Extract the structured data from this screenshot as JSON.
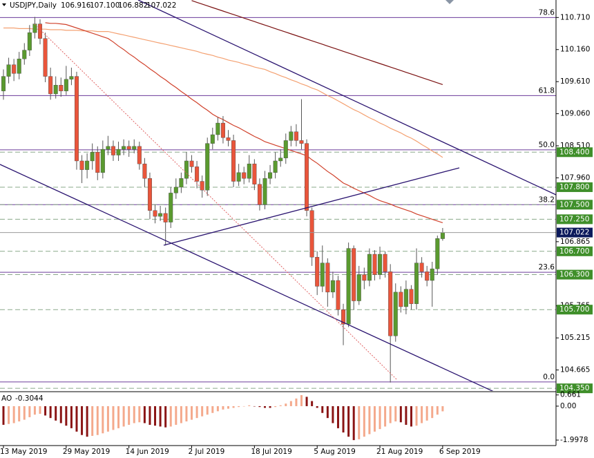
{
  "chart_data": {
    "type": "candlestick",
    "header": {
      "symbol": "USDJPY,Daily",
      "values": [
        "106.916",
        "107.100",
        "106.882",
        "107.022"
      ]
    },
    "categories": [
      "13 May 2019",
      null,
      null,
      null,
      null,
      null,
      null,
      null,
      null,
      null,
      null,
      null,
      "29 May 2019",
      null,
      null,
      null,
      null,
      null,
      null,
      null,
      null,
      null,
      null,
      null,
      "14 Jun 2019",
      null,
      null,
      null,
      null,
      null,
      null,
      null,
      null,
      null,
      null,
      null,
      "2 Jul 2019",
      null,
      null,
      null,
      null,
      null,
      null,
      null,
      null,
      null,
      null,
      null,
      "18 Jul 2019",
      null,
      null,
      null,
      null,
      null,
      null,
      null,
      null,
      null,
      null,
      null,
      "5 Aug 2019",
      null,
      null,
      null,
      null,
      null,
      null,
      null,
      null,
      null,
      null,
      null,
      "21 Aug 2019",
      null,
      null,
      null,
      null,
      null,
      null,
      null,
      null,
      null,
      null,
      null,
      "6 Sep 2019"
    ],
    "open": [
      109.45,
      109.7,
      109.9,
      109.75,
      110.0,
      110.15,
      110.45,
      110.6,
      110.35,
      109.7,
      109.4,
      109.55,
      109.45,
      109.65,
      109.7,
      108.25,
      108.1,
      108.25,
      108.4,
      108.05,
      108.45,
      108.5,
      108.35,
      108.45,
      108.5,
      108.45,
      108.5,
      108.2,
      107.95,
      107.4,
      107.3,
      107.35,
      107.2,
      107.7,
      107.8,
      107.95,
      108.25,
      108.15,
      107.9,
      107.75,
      108.55,
      108.7,
      108.9,
      108.65,
      108.6,
      107.9,
      108.05,
      107.95,
      108.2,
      107.85,
      107.5,
      107.95,
      108.05,
      108.25,
      108.3,
      108.6,
      108.75,
      108.6,
      108.55,
      107.4,
      106.6,
      106.1,
      106.5,
      106.0,
      106.2,
      105.7,
      105.45,
      106.75,
      105.85,
      106.3,
      106.2,
      106.65,
      106.3,
      106.65,
      106.35,
      105.25,
      106.0,
      105.75,
      106.05,
      105.8,
      106.5,
      106.35,
      106.2,
      106.4,
      106.916
    ],
    "high": [
      109.82,
      110.02,
      110.0,
      110.12,
      110.27,
      110.58,
      110.72,
      110.68,
      110.45,
      109.85,
      109.7,
      109.68,
      109.88,
      109.85,
      109.78,
      108.35,
      108.38,
      108.55,
      108.5,
      108.6,
      108.68,
      108.6,
      108.58,
      108.62,
      108.6,
      108.62,
      108.58,
      108.3,
      108.05,
      107.5,
      107.48,
      107.45,
      107.8,
      107.95,
      108.05,
      108.4,
      108.35,
      108.25,
      108.0,
      108.65,
      108.82,
      109.0,
      109.02,
      108.78,
      108.7,
      108.2,
      108.15,
      108.35,
      108.28,
      107.95,
      108.08,
      108.18,
      108.4,
      108.45,
      108.72,
      108.85,
      108.88,
      109.31,
      108.62,
      107.45,
      106.7,
      106.8,
      106.58,
      106.35,
      106.28,
      105.8,
      106.85,
      106.8,
      106.45,
      106.42,
      106.75,
      106.72,
      106.78,
      106.7,
      106.48,
      106.15,
      106.1,
      106.2,
      106.12,
      106.75,
      106.6,
      106.45,
      106.52,
      106.97,
      107.1
    ],
    "low": [
      109.3,
      109.58,
      109.62,
      109.65,
      109.9,
      110.05,
      110.35,
      110.25,
      109.6,
      109.3,
      109.32,
      109.35,
      109.38,
      109.55,
      108.1,
      107.87,
      107.95,
      108.1,
      107.92,
      107.95,
      108.35,
      108.25,
      108.25,
      108.35,
      108.32,
      108.38,
      108.1,
      107.8,
      107.25,
      107.18,
      107.22,
      106.8,
      107.1,
      107.6,
      107.7,
      107.85,
      108.05,
      107.78,
      107.62,
      107.65,
      108.45,
      108.6,
      108.55,
      108.5,
      107.8,
      107.82,
      107.85,
      107.88,
      107.75,
      107.4,
      107.42,
      107.85,
      107.95,
      108.15,
      108.2,
      108.5,
      108.5,
      108.45,
      107.3,
      106.45,
      105.95,
      106.0,
      105.75,
      105.9,
      105.6,
      105.09,
      105.4,
      105.7,
      105.78,
      106.05,
      106.1,
      106.2,
      106.22,
      106.25,
      104.45,
      105.15,
      105.65,
      105.62,
      105.7,
      105.7,
      106.25,
      106.1,
      105.75,
      106.3,
      106.882
    ],
    "close": [
      109.7,
      109.9,
      109.75,
      110.0,
      110.15,
      110.45,
      110.6,
      110.35,
      109.7,
      109.4,
      109.55,
      109.45,
      109.65,
      109.7,
      108.25,
      108.1,
      108.25,
      108.4,
      108.05,
      108.45,
      108.5,
      108.35,
      108.45,
      108.5,
      108.45,
      108.5,
      108.2,
      107.95,
      107.4,
      107.3,
      107.35,
      107.2,
      107.7,
      107.8,
      107.95,
      108.25,
      108.15,
      107.9,
      107.75,
      108.55,
      108.7,
      108.9,
      108.65,
      108.6,
      107.9,
      108.05,
      107.95,
      108.2,
      107.85,
      107.5,
      107.95,
      108.05,
      108.25,
      108.3,
      108.6,
      108.75,
      108.6,
      108.55,
      107.4,
      106.6,
      106.1,
      106.5,
      106.0,
      106.2,
      105.7,
      105.45,
      106.75,
      105.85,
      106.3,
      106.2,
      106.65,
      106.3,
      106.65,
      106.35,
      105.25,
      106.0,
      105.75,
      106.05,
      105.8,
      106.5,
      106.35,
      106.2,
      106.4,
      106.92,
      107.022
    ],
    "up_color": "#5a9a2f",
    "down_color": "#e9553b",
    "ylim": [
      104.34,
      111.01
    ],
    "yticks": [
      {
        "value": 110.71,
        "label": "110.710"
      },
      {
        "value": 110.16,
        "label": "110.160"
      },
      {
        "value": 109.61,
        "label": "109.610"
      },
      {
        "value": 109.06,
        "label": "109.060"
      },
      {
        "value": 108.51,
        "label": "108.510"
      },
      {
        "value": 107.96,
        "label": "107.960"
      },
      106.865,
      105.765,
      105.215,
      104.665
    ],
    "moving_averages": [
      {
        "color": "#7a1010",
        "values": [
          null,
          null,
          null,
          null,
          null,
          null,
          null,
          null,
          null,
          null,
          null,
          null,
          null,
          null,
          null,
          null,
          null,
          null,
          null,
          null,
          null,
          null,
          null,
          null,
          null,
          null,
          null,
          null,
          null,
          null,
          null,
          null,
          null,
          null,
          null,
          null,
          111.0,
          110.97,
          110.94,
          110.91,
          110.88,
          110.85,
          110.82,
          110.79,
          110.76,
          110.73,
          110.7,
          110.67,
          110.64,
          110.61,
          110.58,
          110.55,
          110.52,
          110.49,
          110.46,
          110.43,
          110.4,
          110.37,
          110.34,
          110.31,
          110.28,
          110.25,
          110.22,
          110.19,
          110.16,
          110.13,
          110.1,
          110.07,
          110.04,
          110.01,
          109.98,
          109.95,
          109.92,
          109.89,
          109.86,
          109.83,
          109.8,
          109.77,
          109.74,
          109.71,
          109.68,
          109.65,
          109.62,
          109.59,
          109.56
        ]
      },
      {
        "color": "#f4a070",
        "values": [
          110.53,
          110.53,
          110.53,
          110.52,
          110.52,
          110.52,
          110.51,
          110.51,
          110.51,
          110.5,
          110.5,
          110.5,
          110.49,
          110.49,
          110.49,
          110.48,
          110.48,
          110.48,
          110.47,
          110.47,
          110.47,
          110.45,
          110.43,
          110.41,
          110.39,
          110.37,
          110.35,
          110.33,
          110.31,
          110.29,
          110.27,
          110.25,
          110.23,
          110.21,
          110.19,
          110.17,
          110.15,
          110.13,
          110.1,
          110.08,
          110.06,
          110.03,
          110.01,
          109.98,
          109.96,
          109.94,
          109.91,
          109.89,
          109.86,
          109.84,
          109.82,
          109.78,
          109.75,
          109.71,
          109.68,
          109.64,
          109.61,
          109.57,
          109.54,
          109.5,
          109.47,
          109.42,
          109.37,
          109.33,
          109.28,
          109.23,
          109.18,
          109.13,
          109.09,
          109.04,
          108.99,
          108.95,
          108.9,
          108.86,
          108.81,
          108.77,
          108.73,
          108.68,
          108.64,
          108.59,
          108.53,
          108.48,
          108.42,
          108.37,
          108.31
        ]
      },
      {
        "color": "#d0402a",
        "values": [
          null,
          null,
          null,
          null,
          null,
          null,
          null,
          null,
          110.62,
          110.61,
          110.61,
          110.6,
          110.59,
          110.56,
          110.53,
          110.5,
          110.47,
          110.44,
          110.41,
          110.38,
          110.35,
          110.29,
          110.22,
          110.16,
          110.09,
          110.03,
          109.96,
          109.9,
          109.83,
          109.77,
          109.7,
          109.64,
          109.57,
          109.51,
          109.44,
          109.38,
          109.31,
          109.25,
          109.18,
          109.12,
          109.05,
          109.0,
          108.96,
          108.91,
          108.86,
          108.82,
          108.77,
          108.72,
          108.67,
          108.63,
          108.58,
          108.55,
          108.52,
          108.49,
          108.46,
          108.43,
          108.4,
          108.37,
          108.34,
          108.27,
          108.21,
          108.14,
          108.07,
          108.01,
          107.94,
          107.87,
          107.83,
          107.78,
          107.74,
          107.7,
          107.66,
          107.61,
          107.57,
          107.54,
          107.51,
          107.47,
          107.44,
          107.41,
          107.38,
          107.34,
          107.31,
          107.28,
          107.25,
          107.22,
          107.19
        ]
      }
    ],
    "levels": [
      {
        "value": 108.4,
        "label": "108.400"
      },
      {
        "value": 107.8,
        "label": "107.800"
      },
      {
        "value": 107.5,
        "label": "107.500"
      },
      {
        "value": 107.25,
        "label": "107.250"
      },
      {
        "value": 106.7,
        "label": "106.700"
      },
      {
        "value": 106.3,
        "label": "106.300"
      },
      {
        "value": 105.7,
        "label": "105.700"
      },
      {
        "value": 104.35,
        "label": "104.350"
      }
    ],
    "level_color": "#3f8f2a",
    "current_color": "#0c1a5c",
    "fib_levels": [
      {
        "label": "78.6",
        "price": 110.71
      },
      {
        "label": "61.8",
        "price": 109.37
      },
      {
        "label": "50.0",
        "price": 108.44
      },
      {
        "label": "38.2",
        "price": 107.5
      },
      {
        "label": "23.6",
        "price": 106.34
      },
      {
        "label": "0.0",
        "price": 104.46
      }
    ],
    "fib_color": "#6a3a9a",
    "indicator": {
      "type": "bar",
      "name": "AO",
      "values": [
        -1.1,
        -1.05,
        -1.0,
        -0.9,
        -0.8,
        -0.65,
        -0.5,
        -0.45,
        -0.55,
        -0.7,
        -0.85,
        -1.0,
        -1.15,
        -1.3,
        -1.5,
        -1.7,
        -1.8,
        -1.75,
        -1.7,
        -1.6,
        -1.5,
        -1.4,
        -1.3,
        -1.2,
        -1.1,
        -1.0,
        -0.95,
        -1.0,
        -1.1,
        -1.15,
        -1.2,
        -1.25,
        -1.2,
        -1.1,
        -1.0,
        -0.9,
        -0.8,
        -0.7,
        -0.6,
        -0.5,
        -0.4,
        -0.3,
        -0.2,
        -0.15,
        -0.1,
        -0.05,
        0.0,
        0.05,
        0.0,
        -0.05,
        -0.1,
        -0.1,
        -0.05,
        0.05,
        0.15,
        0.3,
        0.45,
        0.65,
        0.55,
        0.3,
        -0.1,
        -0.4,
        -0.7,
        -1.0,
        -1.3,
        -1.55,
        -1.8,
        -2.0,
        -1.95,
        -1.8,
        -1.65,
        -1.5,
        -1.35,
        -1.2,
        -1.0,
        -0.9,
        -0.95,
        -1.1,
        -1.2,
        -1.15,
        -1.0,
        -0.85,
        -0.7,
        -0.5,
        -0.3044
      ],
      "ylim": [
        -2.24,
        0.73
      ],
      "yticks": [
        0.661,
        {
          "value": 0,
          "label": "0.00"
        },
        -1.9978
      ],
      "up_color": "#f4a98c",
      "down_color": "#8a1414"
    }
  }
}
